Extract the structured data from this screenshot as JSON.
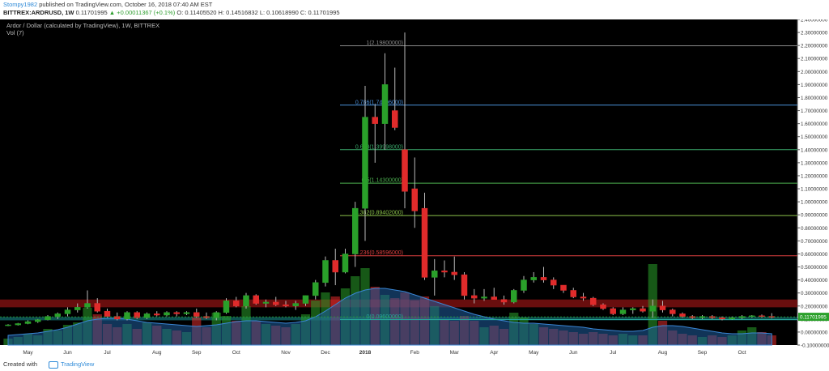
{
  "header": {
    "author": "Stompy1982",
    "published_text": "published on TradingView.com, October 16, 2018 07:40 AM EST",
    "symbol": "BITTREX:ARDRUSD, 1W",
    "last_price": "0.11701995",
    "change": "▲ +0.00011367 (+0.1%)",
    "ohlc": "O: 0.11405520  H: 0.14516832  L: 0.10618990  C: 0.11701995"
  },
  "footer": {
    "created_with": "Created with",
    "brand": "TradingView"
  },
  "chart_data": {
    "type": "candlestick",
    "title": "Ardor / Dollar (calculated by TradingView), 1W, BITTREX",
    "indicator_label": "Vol (7)",
    "colors": {
      "up": "#2aa02a",
      "down": "#e02b2b",
      "price_label_bg": "#2aa02a",
      "volume_ma_fill": "#1f5fa0"
    },
    "ylim": [
      -0.1,
      2.4
    ],
    "y_ticks": [
      2.4,
      2.3,
      2.2,
      2.1,
      2.0,
      1.9,
      1.8,
      1.7,
      1.6,
      1.5,
      1.4,
      1.3,
      1.2,
      1.1,
      1.0,
      0.9,
      0.8,
      0.7,
      0.6,
      0.5,
      0.4,
      0.3,
      0.2,
      0.1,
      0.0,
      -0.1
    ],
    "y_tick_labels": [
      "2.40000000",
      "2.30000000",
      "2.20000000",
      "2.10000000",
      "2.00000000",
      "1.90000000",
      "1.80000000",
      "1.70000000",
      "1.60000000",
      "1.50000000",
      "1.40000000",
      "1.30000000",
      "1.20000000",
      "1.10000000",
      "1.00000000",
      "0.90000000",
      "0.80000000",
      "0.70000000",
      "0.60000000",
      "0.50000000",
      "0.40000000",
      "0.30000000",
      "0.20000000",
      "0.10000000",
      "0.00000000",
      "-0.10000000"
    ],
    "x_labels": [
      {
        "label": "May",
        "bar": 2
      },
      {
        "label": "Jun",
        "bar": 6
      },
      {
        "label": "Jul",
        "bar": 10
      },
      {
        "label": "Aug",
        "bar": 15
      },
      {
        "label": "Sep",
        "bar": 19
      },
      {
        "label": "Oct",
        "bar": 23
      },
      {
        "label": "Nov",
        "bar": 28
      },
      {
        "label": "Dec",
        "bar": 32
      },
      {
        "label": "2018",
        "bar": 36
      },
      {
        "label": "Feb",
        "bar": 41
      },
      {
        "label": "Mar",
        "bar": 45
      },
      {
        "label": "Apr",
        "bar": 49
      },
      {
        "label": "May",
        "bar": 53
      },
      {
        "label": "Jun",
        "bar": 57
      },
      {
        "label": "Jul",
        "bar": 61
      },
      {
        "label": "Aug",
        "bar": 66
      },
      {
        "label": "Sep",
        "bar": 70
      },
      {
        "label": "Oct",
        "bar": 74
      }
    ],
    "fib_levels": [
      {
        "label": "1(2.19800000)",
        "value": 2.198,
        "color": "#8a8a8a"
      },
      {
        "label": "0.786(1.74196000)",
        "value": 1.742,
        "color": "#4a8fd8"
      },
      {
        "label": "0.618(1.39998000)",
        "value": 1.4,
        "color": "#3aa86a"
      },
      {
        "label": "0.5(1.14300000)",
        "value": 1.143,
        "color": "#4caf50"
      },
      {
        "label": "0.382(0.89402000)",
        "value": 0.894,
        "color": "#8bc34a"
      },
      {
        "label": "0.236(0.58596000)",
        "value": 0.586,
        "color": "#e04040"
      },
      {
        "label": "0(0.09600000)",
        "value": 0.096,
        "color": "#26a69a"
      }
    ],
    "zones": [
      {
        "from": 0.19,
        "to": 0.25,
        "color": "#7a1010"
      },
      {
        "from": 0.09,
        "to": 0.115,
        "color": "#0f5f5f"
      }
    ],
    "last_price_label": "0.11701995",
    "last_price": 0.117,
    "volume_max": 100,
    "candles": [
      {
        "o": 0.05,
        "h": 0.06,
        "l": 0.045,
        "c": 0.055,
        "v": 8
      },
      {
        "o": 0.055,
        "h": 0.07,
        "l": 0.05,
        "c": 0.065,
        "v": 10
      },
      {
        "o": 0.065,
        "h": 0.09,
        "l": 0.06,
        "c": 0.08,
        "v": 14
      },
      {
        "o": 0.08,
        "h": 0.1,
        "l": 0.07,
        "c": 0.095,
        "v": 12
      },
      {
        "o": 0.095,
        "h": 0.13,
        "l": 0.09,
        "c": 0.12,
        "v": 20
      },
      {
        "o": 0.12,
        "h": 0.15,
        "l": 0.1,
        "c": 0.14,
        "v": 18
      },
      {
        "o": 0.14,
        "h": 0.19,
        "l": 0.12,
        "c": 0.17,
        "v": 25
      },
      {
        "o": 0.17,
        "h": 0.22,
        "l": 0.15,
        "c": 0.19,
        "v": 28
      },
      {
        "o": 0.19,
        "h": 0.32,
        "l": 0.18,
        "c": 0.22,
        "v": 46
      },
      {
        "o": 0.22,
        "h": 0.26,
        "l": 0.15,
        "c": 0.16,
        "v": 38
      },
      {
        "o": 0.16,
        "h": 0.18,
        "l": 0.11,
        "c": 0.12,
        "v": 26
      },
      {
        "o": 0.12,
        "h": 0.15,
        "l": 0.09,
        "c": 0.1,
        "v": 22
      },
      {
        "o": 0.1,
        "h": 0.16,
        "l": 0.09,
        "c": 0.15,
        "v": 26
      },
      {
        "o": 0.15,
        "h": 0.16,
        "l": 0.1,
        "c": 0.11,
        "v": 20
      },
      {
        "o": 0.11,
        "h": 0.15,
        "l": 0.1,
        "c": 0.14,
        "v": 28
      },
      {
        "o": 0.14,
        "h": 0.16,
        "l": 0.12,
        "c": 0.13,
        "v": 24
      },
      {
        "o": 0.13,
        "h": 0.16,
        "l": 0.12,
        "c": 0.15,
        "v": 20
      },
      {
        "o": 0.15,
        "h": 0.16,
        "l": 0.12,
        "c": 0.14,
        "v": 18
      },
      {
        "o": 0.14,
        "h": 0.16,
        "l": 0.13,
        "c": 0.15,
        "v": 16
      },
      {
        "o": 0.15,
        "h": 0.18,
        "l": 0.11,
        "c": 0.12,
        "v": 34
      },
      {
        "o": 0.12,
        "h": 0.15,
        "l": 0.1,
        "c": 0.11,
        "v": 22
      },
      {
        "o": 0.11,
        "h": 0.16,
        "l": 0.09,
        "c": 0.15,
        "v": 40
      },
      {
        "o": 0.15,
        "h": 0.26,
        "l": 0.14,
        "c": 0.24,
        "v": 36
      },
      {
        "o": 0.24,
        "h": 0.27,
        "l": 0.19,
        "c": 0.2,
        "v": 30
      },
      {
        "o": 0.2,
        "h": 0.3,
        "l": 0.18,
        "c": 0.28,
        "v": 48
      },
      {
        "o": 0.28,
        "h": 0.29,
        "l": 0.21,
        "c": 0.22,
        "v": 30
      },
      {
        "o": 0.22,
        "h": 0.25,
        "l": 0.19,
        "c": 0.23,
        "v": 26
      },
      {
        "o": 0.23,
        "h": 0.27,
        "l": 0.2,
        "c": 0.21,
        "v": 24
      },
      {
        "o": 0.21,
        "h": 0.24,
        "l": 0.19,
        "c": 0.2,
        "v": 22
      },
      {
        "o": 0.2,
        "h": 0.24,
        "l": 0.17,
        "c": 0.22,
        "v": 26
      },
      {
        "o": 0.22,
        "h": 0.28,
        "l": 0.2,
        "c": 0.28,
        "v": 38
      },
      {
        "o": 0.28,
        "h": 0.4,
        "l": 0.25,
        "c": 0.38,
        "v": 55
      },
      {
        "o": 0.38,
        "h": 0.58,
        "l": 0.35,
        "c": 0.55,
        "v": 65
      },
      {
        "o": 0.55,
        "h": 0.64,
        "l": 0.36,
        "c": 0.46,
        "v": 60
      },
      {
        "o": 0.46,
        "h": 0.64,
        "l": 0.45,
        "c": 0.6,
        "v": 70
      },
      {
        "o": 0.6,
        "h": 1.0,
        "l": 0.5,
        "c": 0.95,
        "v": 85
      },
      {
        "o": 0.95,
        "h": 1.89,
        "l": 0.7,
        "c": 1.65,
        "v": 95
      },
      {
        "o": 1.65,
        "h": 1.75,
        "l": 1.3,
        "c": 1.6,
        "v": 72
      },
      {
        "o": 1.6,
        "h": 2.14,
        "l": 1.4,
        "c": 1.9,
        "v": 62
      },
      {
        "o": 1.7,
        "h": 2.03,
        "l": 1.55,
        "c": 1.57,
        "v": 58
      },
      {
        "o": 1.4,
        "h": 2.3,
        "l": 0.95,
        "c": 1.08,
        "v": 65
      },
      {
        "o": 1.1,
        "h": 1.34,
        "l": 0.8,
        "c": 0.93,
        "v": 55
      },
      {
        "o": 0.95,
        "h": 1.07,
        "l": 0.4,
        "c": 0.42,
        "v": 60
      },
      {
        "o": 0.42,
        "h": 0.56,
        "l": 0.28,
        "c": 0.47,
        "v": 48
      },
      {
        "o": 0.47,
        "h": 0.55,
        "l": 0.42,
        "c": 0.46,
        "v": 32
      },
      {
        "o": 0.46,
        "h": 0.58,
        "l": 0.4,
        "c": 0.44,
        "v": 30
      },
      {
        "o": 0.44,
        "h": 0.46,
        "l": 0.25,
        "c": 0.28,
        "v": 36
      },
      {
        "o": 0.28,
        "h": 0.33,
        "l": 0.22,
        "c": 0.26,
        "v": 30
      },
      {
        "o": 0.26,
        "h": 0.33,
        "l": 0.24,
        "c": 0.27,
        "v": 22
      },
      {
        "o": 0.27,
        "h": 0.34,
        "l": 0.25,
        "c": 0.25,
        "v": 24
      },
      {
        "o": 0.25,
        "h": 0.28,
        "l": 0.21,
        "c": 0.23,
        "v": 20
      },
      {
        "o": 0.23,
        "h": 0.33,
        "l": 0.22,
        "c": 0.32,
        "v": 40
      },
      {
        "o": 0.32,
        "h": 0.43,
        "l": 0.3,
        "c": 0.4,
        "v": 34
      },
      {
        "o": 0.4,
        "h": 0.46,
        "l": 0.38,
        "c": 0.42,
        "v": 26
      },
      {
        "o": 0.42,
        "h": 0.5,
        "l": 0.38,
        "c": 0.4,
        "v": 22
      },
      {
        "o": 0.4,
        "h": 0.42,
        "l": 0.33,
        "c": 0.36,
        "v": 20
      },
      {
        "o": 0.36,
        "h": 0.36,
        "l": 0.3,
        "c": 0.32,
        "v": 18
      },
      {
        "o": 0.32,
        "h": 0.34,
        "l": 0.26,
        "c": 0.27,
        "v": 16
      },
      {
        "o": 0.27,
        "h": 0.3,
        "l": 0.24,
        "c": 0.26,
        "v": 14
      },
      {
        "o": 0.26,
        "h": 0.27,
        "l": 0.2,
        "c": 0.21,
        "v": 16
      },
      {
        "o": 0.21,
        "h": 0.22,
        "l": 0.17,
        "c": 0.18,
        "v": 14
      },
      {
        "o": 0.18,
        "h": 0.19,
        "l": 0.13,
        "c": 0.14,
        "v": 12
      },
      {
        "o": 0.14,
        "h": 0.19,
        "l": 0.13,
        "c": 0.17,
        "v": 14
      },
      {
        "o": 0.17,
        "h": 0.19,
        "l": 0.14,
        "c": 0.18,
        "v": 12
      },
      {
        "o": 0.18,
        "h": 0.2,
        "l": 0.15,
        "c": 0.16,
        "v": 12
      },
      {
        "o": 0.16,
        "h": 0.25,
        "l": 0.11,
        "c": 0.2,
        "v": 100
      },
      {
        "o": 0.2,
        "h": 0.24,
        "l": 0.15,
        "c": 0.17,
        "v": 30
      },
      {
        "o": 0.17,
        "h": 0.18,
        "l": 0.12,
        "c": 0.14,
        "v": 18
      },
      {
        "o": 0.14,
        "h": 0.15,
        "l": 0.11,
        "c": 0.12,
        "v": 14
      },
      {
        "o": 0.12,
        "h": 0.13,
        "l": 0.1,
        "c": 0.11,
        "v": 12
      },
      {
        "o": 0.11,
        "h": 0.13,
        "l": 0.1,
        "c": 0.12,
        "v": 10
      },
      {
        "o": 0.12,
        "h": 0.13,
        "l": 0.1,
        "c": 0.11,
        "v": 12
      },
      {
        "o": 0.11,
        "h": 0.12,
        "l": 0.09,
        "c": 0.1,
        "v": 10
      },
      {
        "o": 0.1,
        "h": 0.12,
        "l": 0.095,
        "c": 0.11,
        "v": 12
      },
      {
        "o": 0.11,
        "h": 0.13,
        "l": 0.1,
        "c": 0.12,
        "v": 18
      },
      {
        "o": 0.12,
        "h": 0.13,
        "l": 0.11,
        "c": 0.125,
        "v": 22
      },
      {
        "o": 0.125,
        "h": 0.135,
        "l": 0.11,
        "c": 0.12,
        "v": 16
      },
      {
        "o": 0.12,
        "h": 0.145,
        "l": 0.105,
        "c": 0.117,
        "v": 12
      }
    ],
    "volume_ma": [
      12,
      13,
      14,
      15,
      17,
      19,
      22,
      26,
      30,
      32,
      33,
      33,
      32,
      30,
      28,
      27,
      26,
      25,
      24,
      23,
      24,
      25,
      27,
      29,
      30,
      30,
      29,
      28,
      27,
      28,
      30,
      35,
      42,
      50,
      58,
      64,
      68,
      70,
      70,
      68,
      66,
      62,
      58,
      54,
      50,
      46,
      42,
      38,
      35,
      32,
      30,
      28,
      27,
      27,
      26,
      25,
      24,
      23,
      22,
      20,
      19,
      18,
      17,
      17,
      18,
      22,
      24,
      24,
      23,
      21,
      19,
      17,
      15,
      14,
      14,
      15,
      15,
      14
    ]
  }
}
